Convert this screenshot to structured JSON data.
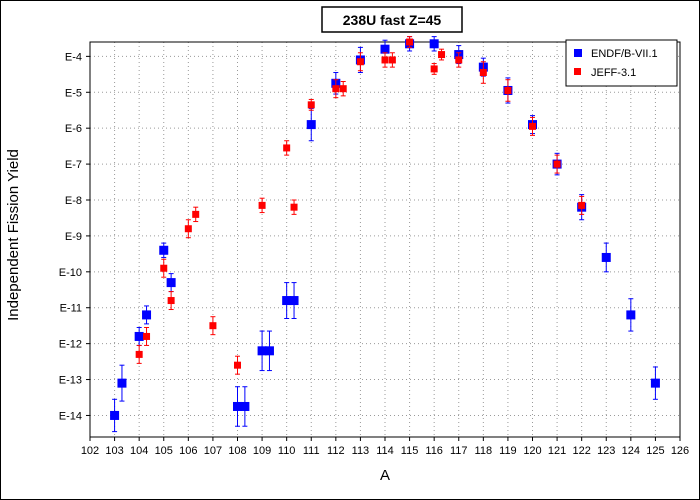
{
  "chart_data": {
    "type": "scatter",
    "title": "238U fast Z=45",
    "xlabel": "A",
    "ylabel": "Independent Fission Yield",
    "xlim": [
      102,
      126
    ],
    "ylim_log10": [
      -14.6,
      -3.6
    ],
    "y_scale": "log",
    "x_ticks": [
      "102",
      "103",
      "104",
      "105",
      "106",
      "107",
      "108",
      "109",
      "110",
      "111",
      "112",
      "113",
      "114",
      "115",
      "116",
      "117",
      "118",
      "119",
      "120",
      "121",
      "122",
      "123",
      "124",
      "125",
      "126"
    ],
    "y_ticks": [
      {
        "label": "E-4",
        "value": -4
      },
      {
        "label": "E-5",
        "value": -5
      },
      {
        "label": "E-6",
        "value": -6
      },
      {
        "label": "E-7",
        "value": -7
      },
      {
        "label": "E-8",
        "value": -8
      },
      {
        "label": "E-9",
        "value": -9
      },
      {
        "label": "E-10",
        "value": -10
      },
      {
        "label": "E-11",
        "value": -11
      },
      {
        "label": "E-12",
        "value": -12
      },
      {
        "label": "E-13",
        "value": -13
      },
      {
        "label": "E-14",
        "value": -14
      }
    ],
    "grid": true,
    "legend_position": "top-right",
    "series": [
      {
        "name": "ENDF/B-VII.1",
        "color": "#0000ff",
        "marker": "square",
        "points": [
          {
            "x": 103.0,
            "log10y": -14.0,
            "err": 0.45
          },
          {
            "x": 103.3,
            "log10y": -13.1,
            "err": 0.5
          },
          {
            "x": 104.0,
            "log10y": -11.8,
            "err": 0.25
          },
          {
            "x": 104.3,
            "log10y": -11.2,
            "err": 0.25
          },
          {
            "x": 105.0,
            "log10y": -9.4,
            "err": 0.2
          },
          {
            "x": 105.3,
            "log10y": -10.3,
            "err": 0.25
          },
          {
            "x": 108.0,
            "log10y": -13.75,
            "err": 0.55
          },
          {
            "x": 108.3,
            "log10y": -13.75,
            "err": 0.55
          },
          {
            "x": 109.0,
            "log10y": -12.2,
            "err": 0.55
          },
          {
            "x": 109.3,
            "log10y": -12.2,
            "err": 0.55
          },
          {
            "x": 110.0,
            "log10y": -10.8,
            "err": 0.5
          },
          {
            "x": 110.3,
            "log10y": -10.8,
            "err": 0.5
          },
          {
            "x": 111.0,
            "log10y": -5.9,
            "err": 0.45
          },
          {
            "x": 112.0,
            "log10y": -4.75,
            "err": 0.3
          },
          {
            "x": 113.0,
            "log10y": -4.1,
            "err": 0.35
          },
          {
            "x": 114.0,
            "log10y": -3.8,
            "err": 0.25
          },
          {
            "x": 115.0,
            "log10y": -3.65,
            "err": 0.2
          },
          {
            "x": 116.0,
            "log10y": -3.65,
            "err": 0.2
          },
          {
            "x": 117.0,
            "log10y": -3.95,
            "err": 0.25
          },
          {
            "x": 118.0,
            "log10y": -4.3,
            "err": 0.25
          },
          {
            "x": 119.0,
            "log10y": -4.95,
            "err": 0.35
          },
          {
            "x": 120.0,
            "log10y": -5.9,
            "err": 0.25
          },
          {
            "x": 121.0,
            "log10y": -7.0,
            "err": 0.3
          },
          {
            "x": 122.0,
            "log10y": -8.2,
            "err": 0.35
          },
          {
            "x": 123.0,
            "log10y": -9.6,
            "err": 0.4
          },
          {
            "x": 124.0,
            "log10y": -11.2,
            "err": 0.45
          },
          {
            "x": 125.0,
            "log10y": -13.1,
            "err": 0.45
          }
        ]
      },
      {
        "name": "JEFF-3.1",
        "color": "#ff0000",
        "marker": "square",
        "points": [
          {
            "x": 104.0,
            "log10y": -12.3,
            "err": 0.25
          },
          {
            "x": 104.3,
            "log10y": -11.8,
            "err": 0.25
          },
          {
            "x": 105.0,
            "log10y": -9.9,
            "err": 0.25
          },
          {
            "x": 105.3,
            "log10y": -10.8,
            "err": 0.25
          },
          {
            "x": 106.0,
            "log10y": -8.8,
            "err": 0.25
          },
          {
            "x": 106.3,
            "log10y": -8.4,
            "err": 0.2
          },
          {
            "x": 107.0,
            "log10y": -11.5,
            "err": 0.25
          },
          {
            "x": 108.0,
            "log10y": -12.6,
            "err": 0.25
          },
          {
            "x": 109.0,
            "log10y": -8.15,
            "err": 0.2
          },
          {
            "x": 110.0,
            "log10y": -6.55,
            "err": 0.2
          },
          {
            "x": 110.3,
            "log10y": -8.2,
            "err": 0.2
          },
          {
            "x": 111.0,
            "log10y": -5.35,
            "err": 0.15
          },
          {
            "x": 112.0,
            "log10y": -4.9,
            "err": 0.25
          },
          {
            "x": 112.3,
            "log10y": -4.9,
            "err": 0.2
          },
          {
            "x": 113.0,
            "log10y": -4.15,
            "err": 0.25
          },
          {
            "x": 114.0,
            "log10y": -4.1,
            "err": 0.2
          },
          {
            "x": 114.3,
            "log10y": -4.1,
            "err": 0.2
          },
          {
            "x": 115.0,
            "log10y": -3.6,
            "err": 0.15
          },
          {
            "x": 116.0,
            "log10y": -4.35,
            "err": 0.15
          },
          {
            "x": 116.3,
            "log10y": -3.95,
            "err": 0.15
          },
          {
            "x": 117.0,
            "log10y": -4.1,
            "err": 0.2
          },
          {
            "x": 118.0,
            "log10y": -4.45,
            "err": 0.3
          },
          {
            "x": 119.0,
            "log10y": -4.95,
            "err": 0.3
          },
          {
            "x": 120.0,
            "log10y": -5.95,
            "err": 0.25
          },
          {
            "x": 121.0,
            "log10y": -7.0,
            "err": 0.25
          },
          {
            "x": 122.0,
            "log10y": -8.15,
            "err": 0.25
          }
        ]
      }
    ]
  }
}
